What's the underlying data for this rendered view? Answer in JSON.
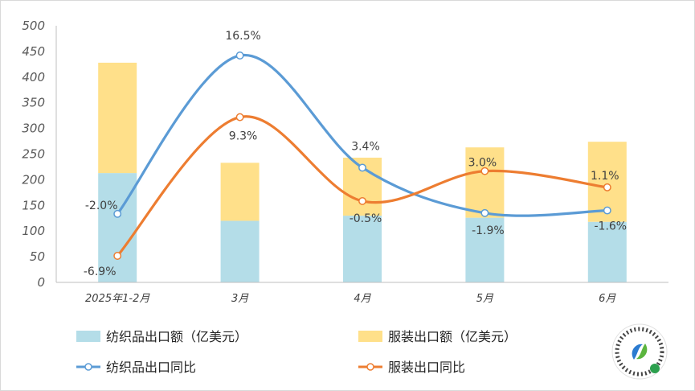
{
  "chart_data": {
    "type": "bar+line",
    "categories": [
      "2025年1-2月",
      "3月",
      "4月",
      "5月",
      "6月"
    ],
    "y_left": {
      "min": 0,
      "max": 500,
      "step": 50
    },
    "bar_series": [
      {
        "name": "纺织品出口额（亿美元）",
        "color": "#b4dde8",
        "values": [
          213,
          120,
          130,
          126,
          118
        ]
      },
      {
        "name": "服装出口额（亿美元）",
        "color": "#ffe08a",
        "values": [
          215,
          113,
          113,
          137,
          156
        ]
      }
    ],
    "line_series": [
      {
        "name": "纺织品出口同比",
        "color": "#5b9bd5",
        "values": [
          -2.0,
          16.5,
          3.4,
          -1.9,
          -1.6
        ],
        "labels": [
          "-2.0%",
          "16.5%",
          "3.4%",
          "-1.9%",
          "-1.6%"
        ]
      },
      {
        "name": "服装出口同比",
        "color": "#ed7d31",
        "values": [
          -6.9,
          9.3,
          -0.5,
          3.0,
          1.1
        ],
        "labels": [
          "-6.9%",
          "9.3%",
          "-0.5%",
          "3.0%",
          "1.1%"
        ]
      }
    ],
    "y_ticks": [
      "0",
      "50",
      "100",
      "150",
      "200",
      "250",
      "300",
      "350",
      "400",
      "450",
      "500"
    ]
  },
  "legend": {
    "bar1": "纺织品出口额（亿美元）",
    "bar2": "服装出口额（亿美元）",
    "line1": "纺织品出口同比",
    "line2": "服装出口同比"
  }
}
